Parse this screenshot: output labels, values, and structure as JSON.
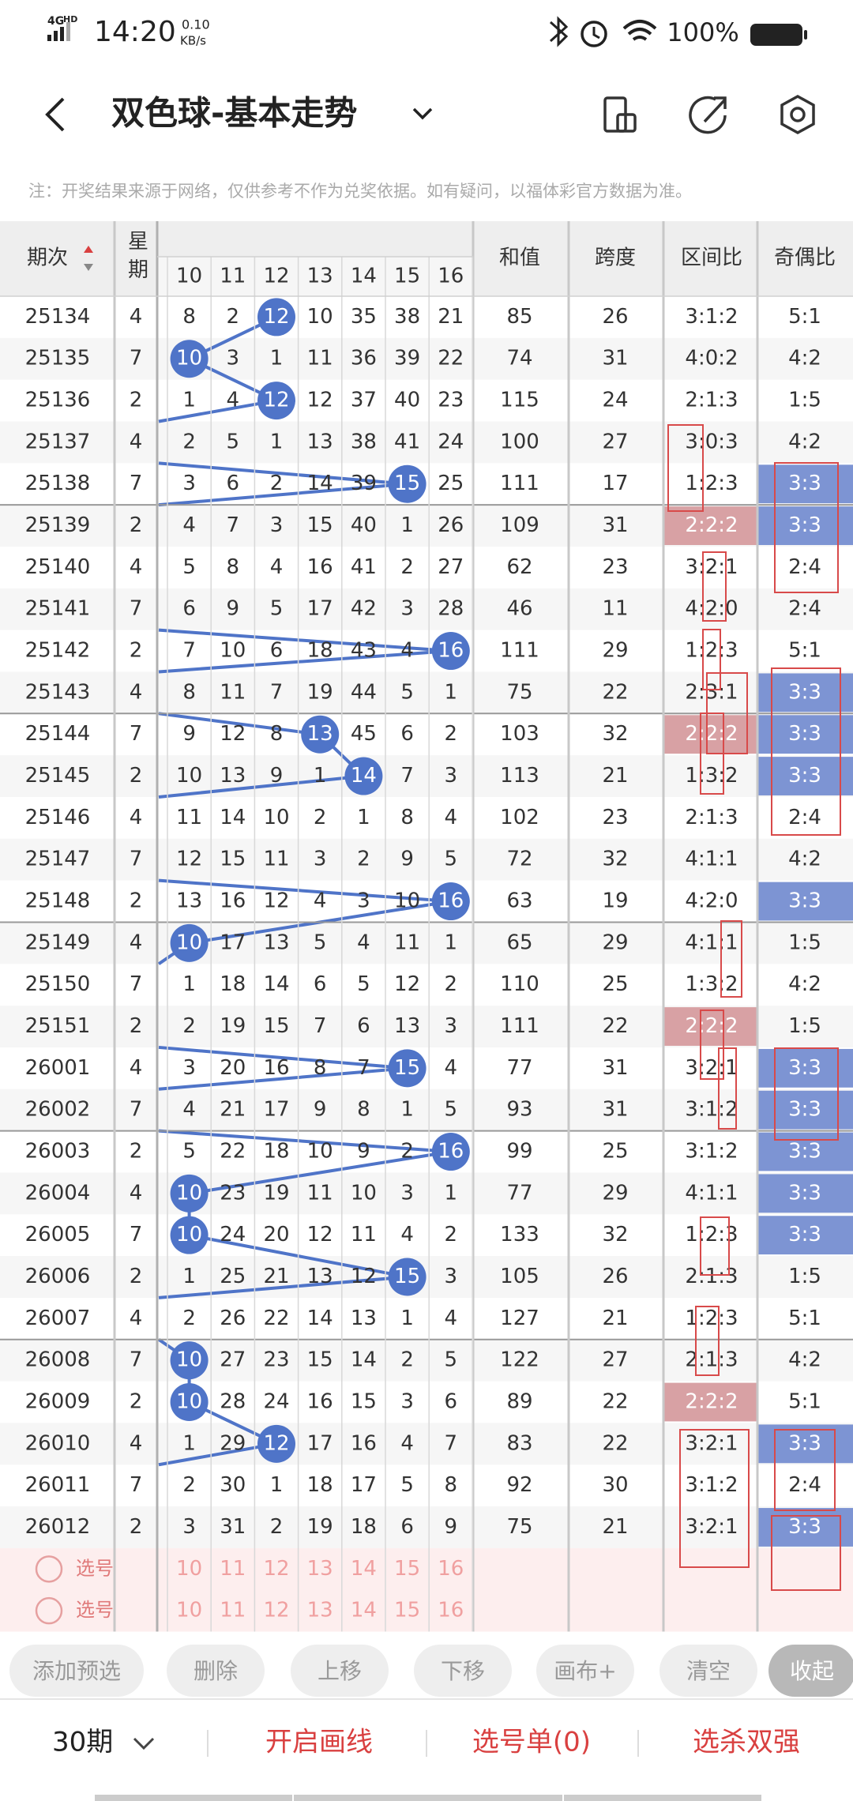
{
  "status_bar": {
    "network": "4G",
    "hd": "HD",
    "time": "14:20",
    "speed": "0.10",
    "speed_unit": "KB/s",
    "battery": "100%"
  },
  "header": {
    "title": "双色球-基本走势"
  },
  "note": "注：开奖结果来源于网络，仅供参考不作为兑奖依据。如有疑问，以福体彩官方数据为准。",
  "table": {
    "headers": {
      "period": "期次",
      "weekday": "星期",
      "numbers": [
        10,
        11,
        12,
        13,
        14,
        15,
        16
      ],
      "sum": "和值",
      "span": "跨度",
      "zone": "区间比",
      "parity": "奇偶比"
    },
    "ball_color": "#4f74c8",
    "zone_color": "#d8a1a4",
    "parity_color": "#7d94d3",
    "rows": [
      {
        "period": "25134",
        "weekday": 4,
        "cells": [
          8,
          2,
          12,
          10,
          35,
          38,
          21
        ],
        "ball": 2,
        "sum": 85,
        "span": 26,
        "zone": "3:1:2",
        "parity": "5:1"
      },
      {
        "period": "25135",
        "weekday": 7,
        "cells": [
          10,
          3,
          1,
          11,
          36,
          39,
          22
        ],
        "ball": 0,
        "sum": 74,
        "span": 31,
        "zone": "4:0:2",
        "parity": "4:2"
      },
      {
        "period": "25136",
        "weekday": 2,
        "cells": [
          1,
          4,
          12,
          12,
          37,
          40,
          23
        ],
        "ball": 2,
        "sum": 115,
        "span": 24,
        "zone": "2:1:3",
        "parity": "1:5"
      },
      {
        "period": "25137",
        "weekday": 4,
        "cells": [
          2,
          5,
          1,
          13,
          38,
          41,
          24
        ],
        "sum": 100,
        "span": 27,
        "zone": "3:0:3",
        "parity": "4:2"
      },
      {
        "period": "25138",
        "weekday": 7,
        "cells": [
          3,
          6,
          2,
          14,
          39,
          15,
          25
        ],
        "ball": 5,
        "sum": 111,
        "span": 17,
        "zone": "1:2:3",
        "parity": "3:3",
        "parity_hl": true
      },
      {
        "period": "25139",
        "weekday": 2,
        "cells": [
          4,
          7,
          3,
          15,
          40,
          1,
          26
        ],
        "sum": 109,
        "span": 31,
        "zone": "2:2:2",
        "zone_hl": true,
        "parity": "3:3",
        "parity_hl": true
      },
      {
        "period": "25140",
        "weekday": 4,
        "cells": [
          5,
          8,
          4,
          16,
          41,
          2,
          27
        ],
        "sum": 62,
        "span": 23,
        "zone": "3:2:1",
        "parity": "2:4"
      },
      {
        "period": "25141",
        "weekday": 7,
        "cells": [
          6,
          9,
          5,
          17,
          42,
          3,
          28
        ],
        "sum": 46,
        "span": 11,
        "zone": "4:2:0",
        "parity": "2:4"
      },
      {
        "period": "25142",
        "weekday": 2,
        "cells": [
          7,
          10,
          6,
          18,
          43,
          4,
          16
        ],
        "ball": 6,
        "sum": 111,
        "span": 29,
        "zone": "1:2:3",
        "parity": "5:1"
      },
      {
        "period": "25143",
        "weekday": 4,
        "cells": [
          8,
          11,
          7,
          19,
          44,
          5,
          1
        ],
        "sum": 75,
        "span": 22,
        "zone": "2:3:1",
        "parity": "3:3",
        "parity_hl": true
      },
      {
        "period": "25144",
        "weekday": 7,
        "cells": [
          9,
          12,
          8,
          13,
          45,
          6,
          2
        ],
        "ball": 3,
        "sum": 103,
        "span": 32,
        "zone": "2:2:2",
        "zone_hl": true,
        "parity": "3:3",
        "parity_hl": true
      },
      {
        "period": "25145",
        "weekday": 2,
        "cells": [
          10,
          13,
          9,
          1,
          14,
          7,
          3
        ],
        "ball": 4,
        "sum": 113,
        "span": 21,
        "zone": "1:3:2",
        "parity": "3:3",
        "parity_hl": true
      },
      {
        "period": "25146",
        "weekday": 4,
        "cells": [
          11,
          14,
          10,
          2,
          1,
          8,
          4
        ],
        "sum": 102,
        "span": 23,
        "zone": "2:1:3",
        "parity": "2:4"
      },
      {
        "period": "25147",
        "weekday": 7,
        "cells": [
          12,
          15,
          11,
          3,
          2,
          9,
          5
        ],
        "sum": 72,
        "span": 32,
        "zone": "4:1:1",
        "parity": "4:2"
      },
      {
        "period": "25148",
        "weekday": 2,
        "cells": [
          13,
          16,
          12,
          4,
          3,
          10,
          16
        ],
        "ball": 6,
        "sum": 63,
        "span": 19,
        "zone": "4:2:0",
        "parity": "3:3",
        "parity_hl": true
      },
      {
        "period": "25149",
        "weekday": 4,
        "cells": [
          10,
          17,
          13,
          5,
          4,
          11,
          1
        ],
        "ball": 0,
        "sum": 65,
        "span": 29,
        "zone": "4:1:1",
        "parity": "1:5"
      },
      {
        "period": "25150",
        "weekday": 7,
        "cells": [
          1,
          18,
          14,
          6,
          5,
          12,
          2
        ],
        "sum": 110,
        "span": 25,
        "zone": "1:3:2",
        "parity": "4:2"
      },
      {
        "period": "25151",
        "weekday": 2,
        "cells": [
          2,
          19,
          15,
          7,
          6,
          13,
          3
        ],
        "sum": 111,
        "span": 22,
        "zone": "2:2:2",
        "zone_hl": true,
        "parity": "1:5"
      },
      {
        "period": "26001",
        "weekday": 4,
        "cells": [
          3,
          20,
          16,
          8,
          7,
          15,
          4
        ],
        "ball": 5,
        "sum": 77,
        "span": 31,
        "zone": "3:2:1",
        "parity": "3:3",
        "parity_hl": true
      },
      {
        "period": "26002",
        "weekday": 7,
        "cells": [
          4,
          21,
          17,
          9,
          8,
          1,
          5
        ],
        "sum": 93,
        "span": 31,
        "zone": "3:1:2",
        "parity": "3:3",
        "parity_hl": true
      },
      {
        "period": "26003",
        "weekday": 2,
        "cells": [
          5,
          22,
          18,
          10,
          9,
          2,
          16
        ],
        "ball": 6,
        "sum": 99,
        "span": 25,
        "zone": "3:1:2",
        "parity": "3:3",
        "parity_hl": true
      },
      {
        "period": "26004",
        "weekday": 4,
        "cells": [
          10,
          23,
          19,
          11,
          10,
          3,
          1
        ],
        "ball": 0,
        "sum": 77,
        "span": 29,
        "zone": "4:1:1",
        "parity": "3:3",
        "parity_hl": true
      },
      {
        "period": "26005",
        "weekday": 7,
        "cells": [
          10,
          24,
          20,
          12,
          11,
          4,
          2
        ],
        "ball": 0,
        "sum": 133,
        "span": 32,
        "zone": "1:2:3",
        "parity": "3:3",
        "parity_hl": true
      },
      {
        "period": "26006",
        "weekday": 2,
        "cells": [
          1,
          25,
          21,
          13,
          12,
          15,
          3
        ],
        "ball": 5,
        "sum": 105,
        "span": 26,
        "zone": "2:1:3",
        "parity": "1:5"
      },
      {
        "period": "26007",
        "weekday": 4,
        "cells": [
          2,
          26,
          22,
          14,
          13,
          1,
          4
        ],
        "sum": 127,
        "span": 21,
        "zone": "1:2:3",
        "parity": "5:1"
      },
      {
        "period": "26008",
        "weekday": 7,
        "cells": [
          10,
          27,
          23,
          15,
          14,
          2,
          5
        ],
        "ball": 0,
        "sum": 122,
        "span": 27,
        "zone": "2:1:3",
        "parity": "4:2"
      },
      {
        "period": "26009",
        "weekday": 2,
        "cells": [
          10,
          28,
          24,
          16,
          15,
          3,
          6
        ],
        "ball": 0,
        "sum": 89,
        "span": 22,
        "zone": "2:2:2",
        "zone_hl": true,
        "parity": "5:1"
      },
      {
        "period": "26010",
        "weekday": 4,
        "cells": [
          1,
          29,
          12,
          17,
          16,
          4,
          7
        ],
        "ball": 2,
        "sum": 83,
        "span": 22,
        "zone": "3:2:1",
        "parity": "3:3",
        "parity_hl": true
      },
      {
        "period": "26011",
        "weekday": 7,
        "cells": [
          2,
          30,
          1,
          18,
          17,
          5,
          8
        ],
        "sum": 92,
        "span": 30,
        "zone": "3:1:2",
        "parity": "2:4"
      },
      {
        "period": "26012",
        "weekday": 2,
        "cells": [
          3,
          31,
          2,
          19,
          18,
          6,
          9
        ],
        "sum": 75,
        "span": 21,
        "zone": "3:2:1",
        "parity": "3:3",
        "parity_hl": true
      }
    ],
    "select_rows": [
      {
        "label": "选号",
        "numbers": [
          10,
          11,
          12,
          13,
          14,
          15,
          16
        ]
      },
      {
        "label": "选号",
        "numbers": [
          10,
          11,
          12,
          13,
          14,
          15,
          16
        ]
      }
    ]
  },
  "toolbar": [
    "添加预选",
    "删除",
    "上移",
    "下移",
    "画布+",
    "清空",
    "收起"
  ],
  "bottom_bar": {
    "periods": "30期",
    "draw": "开启画线",
    "list": "选号单(0)",
    "pick": "选杀双强"
  }
}
